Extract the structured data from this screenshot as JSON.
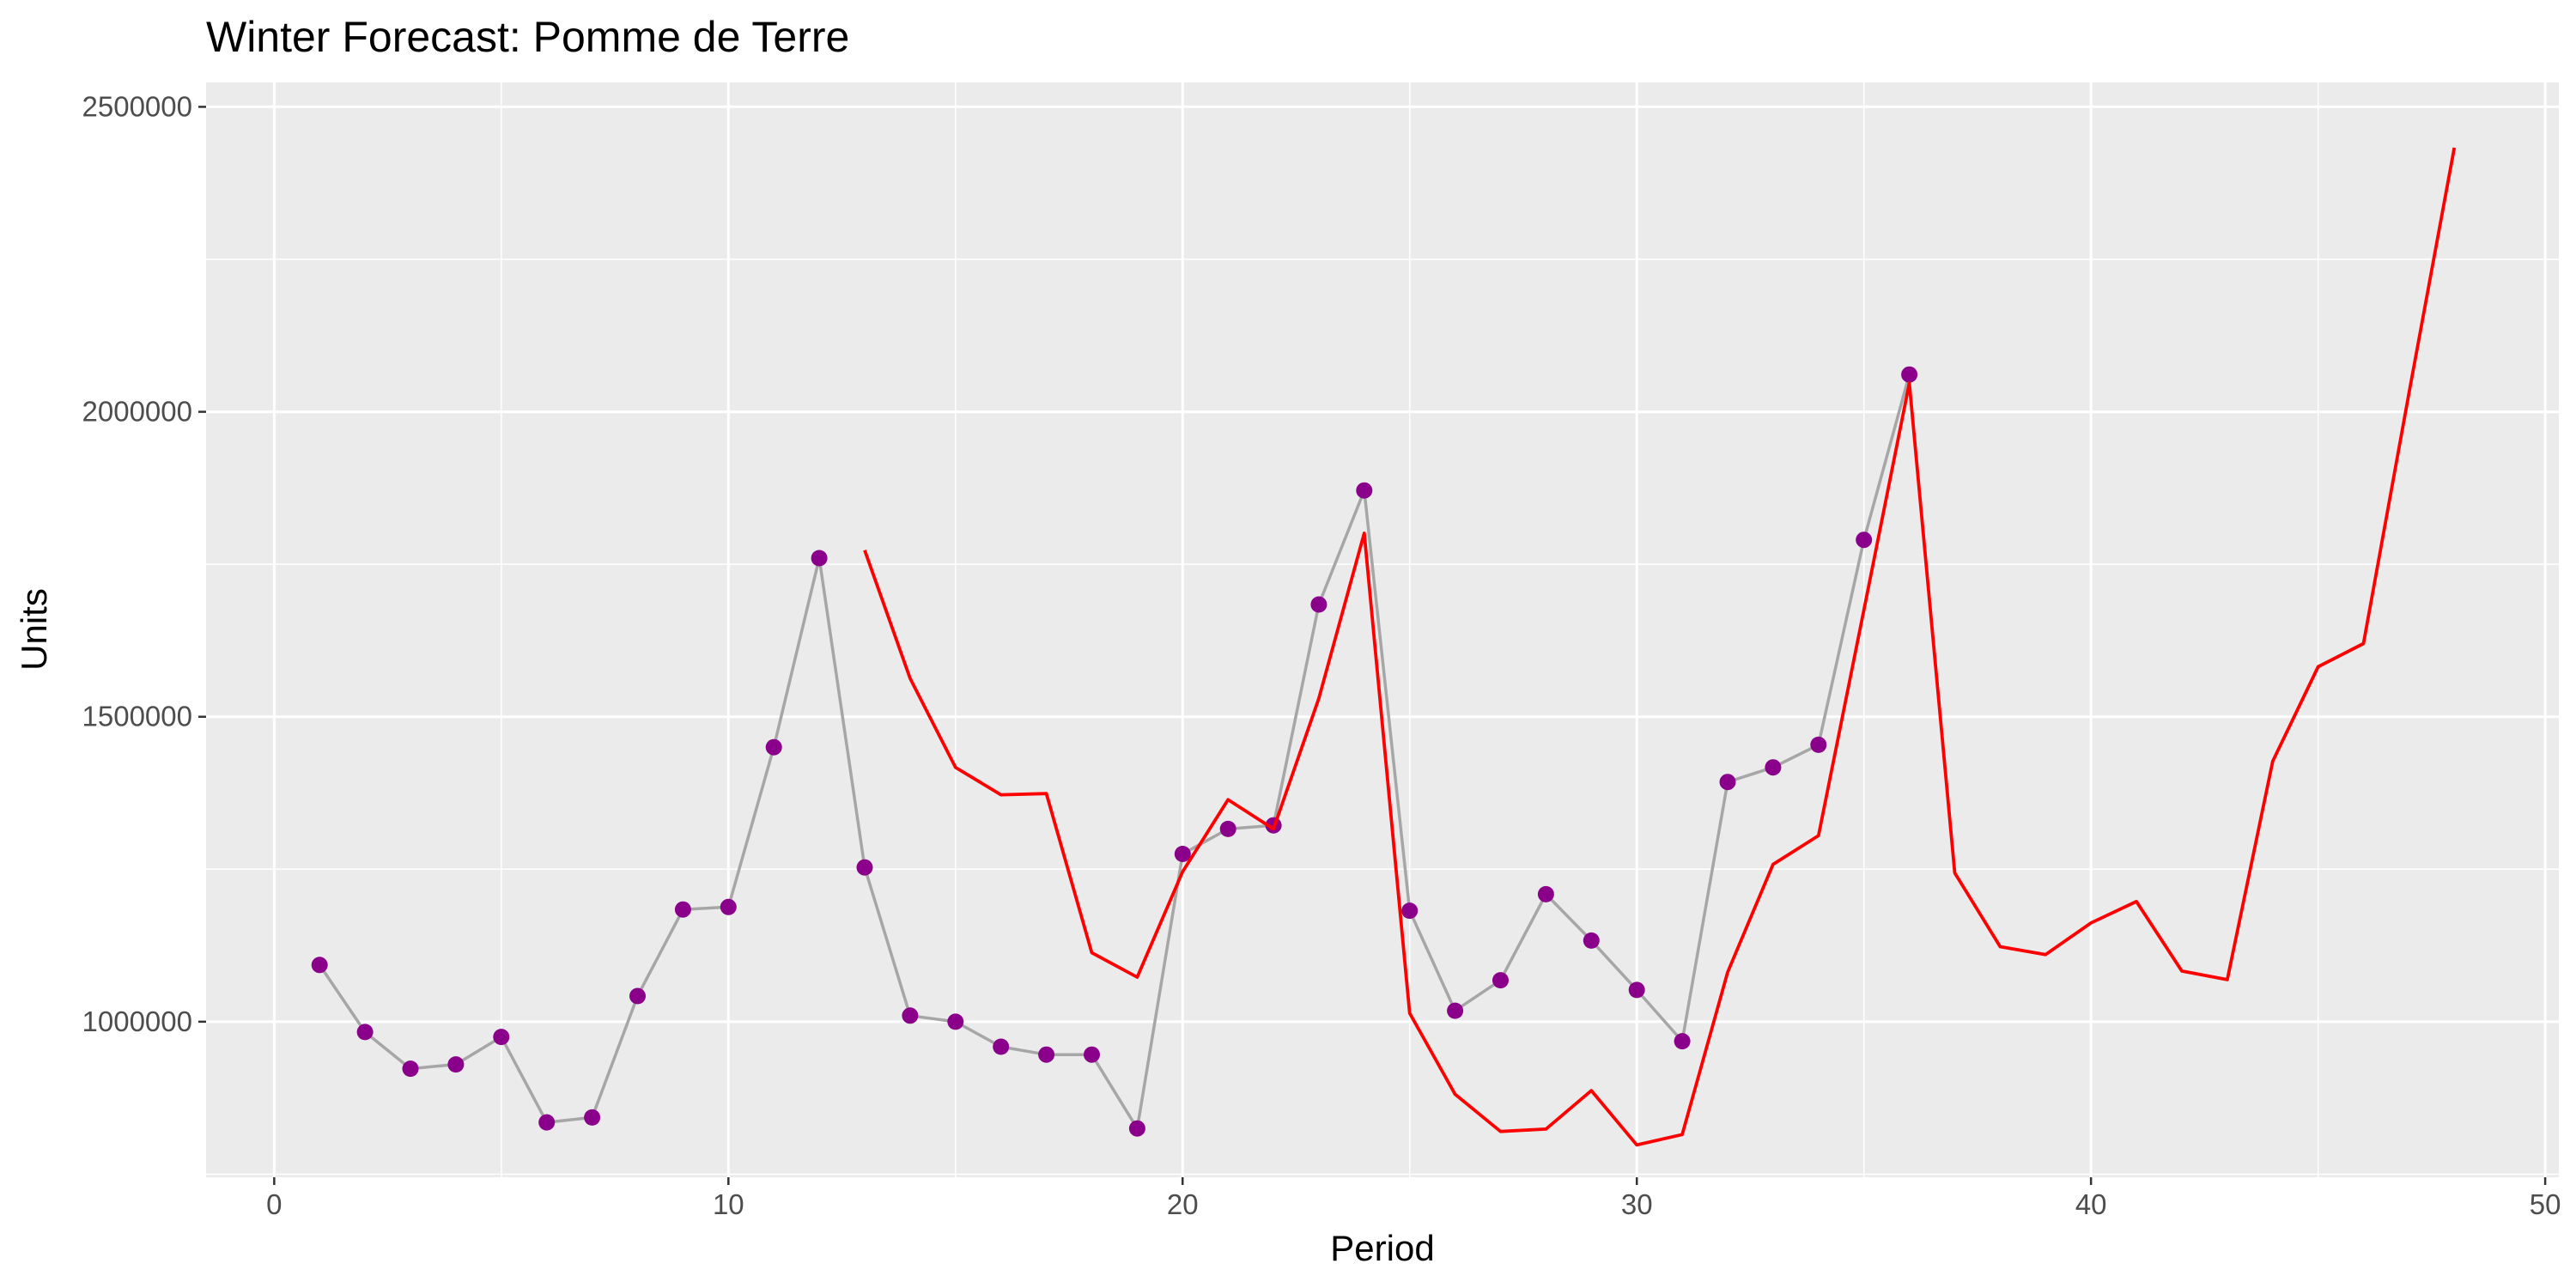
{
  "chart_data": {
    "type": "line",
    "title": "Winter Forecast: Pomme de Terre",
    "xlabel": "Period",
    "ylabel": "Units",
    "xlim": [
      -1.5,
      50.3
    ],
    "ylim": [
      745000,
      2540000
    ],
    "x_major_ticks": [
      0,
      10,
      20,
      30,
      40,
      50
    ],
    "x_minor_ticks": [
      5,
      15,
      25,
      35,
      45
    ],
    "y_major_ticks": [
      1000000,
      1500000,
      2000000,
      2500000
    ],
    "y_minor_ticks": [
      750000,
      1250000,
      1750000,
      2250000
    ],
    "y_tick_labels": [
      "1000000",
      "1500000",
      "2000000",
      "2500000"
    ],
    "x_tick_labels": [
      "0",
      "10",
      "20",
      "30",
      "40",
      "50"
    ],
    "grid": true,
    "legend": "none",
    "series": [
      {
        "role": "actual",
        "style": "line+points",
        "line_color": "#A6A6A6",
        "point_color": "#8B008B",
        "x": [
          1,
          2,
          3,
          4,
          5,
          6,
          7,
          8,
          9,
          10,
          11,
          12,
          13,
          14,
          15,
          16,
          17,
          18,
          19,
          20,
          21,
          22,
          23,
          24,
          25,
          26,
          27,
          28,
          29,
          30,
          31,
          32,
          33,
          34,
          35,
          36
        ],
        "values": [
          1093000,
          983000,
          923000,
          930000,
          975000,
          835000,
          843000,
          1042000,
          1184000,
          1188000,
          1450000,
          1760000,
          1253000,
          1010000,
          1000000,
          959000,
          946000,
          946000,
          825000,
          1275000,
          1316000,
          1322000,
          1684000,
          1871000,
          1182000,
          1018000,
          1068000,
          1209000,
          1133000,
          1052000,
          968000,
          1393000,
          1417000,
          1454000,
          1790000,
          2061000
        ]
      },
      {
        "role": "forecast",
        "style": "line",
        "line_color": "#FF0000",
        "x": [
          13,
          14,
          15,
          16,
          17,
          18,
          19,
          20,
          21,
          22,
          23,
          24,
          25,
          26,
          27,
          28,
          29,
          30,
          31,
          32,
          33,
          34,
          35,
          36,
          37,
          38,
          39,
          40,
          41,
          42,
          43,
          44,
          45,
          46,
          47,
          48
        ],
        "values": [
          1773000,
          1563000,
          1417000,
          1372000,
          1374000,
          1113000,
          1073000,
          1246000,
          1364000,
          1316000,
          1530000,
          1801000,
          1014000,
          881000,
          820000,
          824000,
          887000,
          798000,
          815000,
          1081000,
          1258000,
          1305000,
          1675000,
          2047000,
          1244000,
          1123000,
          1110000,
          1162000,
          1197000,
          1083000,
          1069000,
          1427000,
          1582000,
          1620000,
          2030000,
          2433000
        ]
      }
    ]
  }
}
